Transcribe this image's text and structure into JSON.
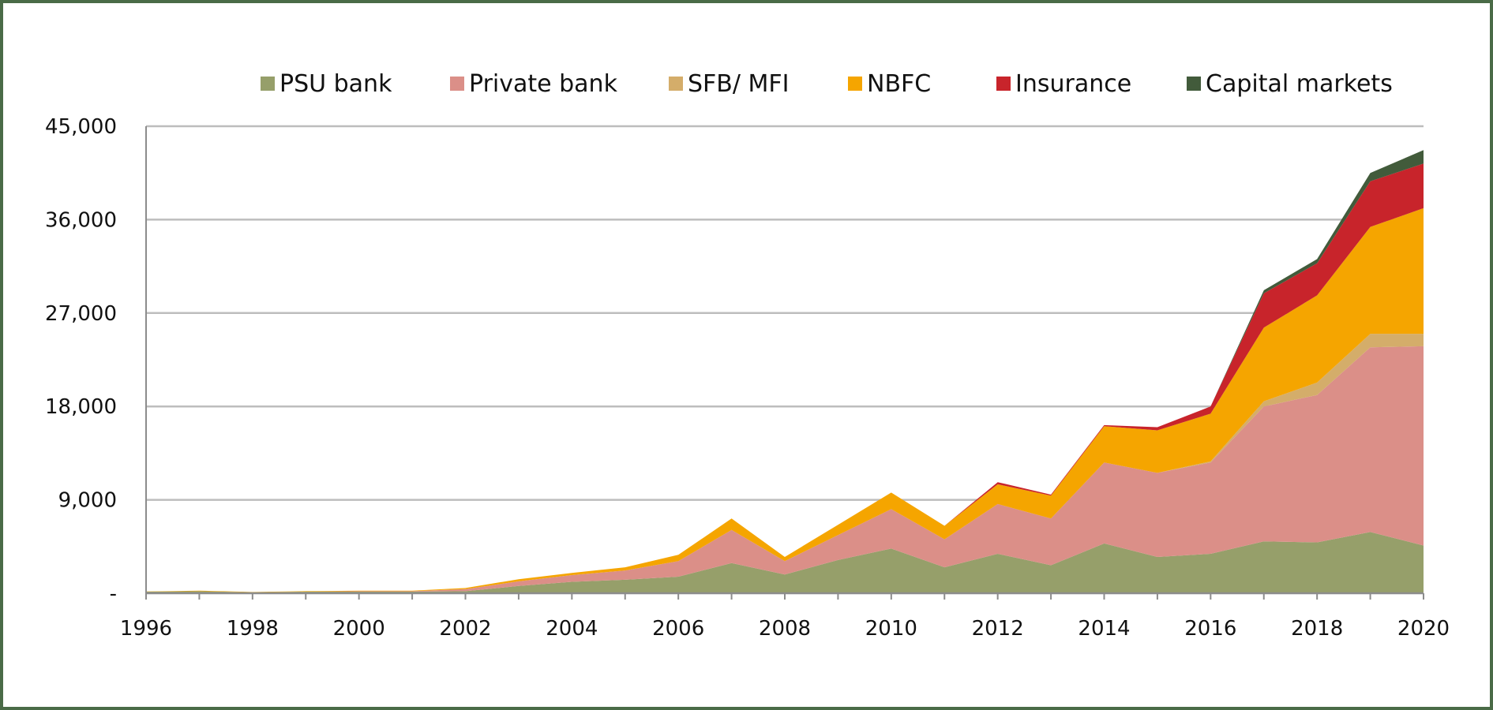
{
  "chart_data": {
    "type": "area",
    "stacked": true,
    "title": "",
    "xlabel": "",
    "ylabel": "",
    "x": [
      1996,
      1997,
      1998,
      1999,
      2000,
      2001,
      2002,
      2003,
      2004,
      2005,
      2006,
      2007,
      2008,
      2009,
      2010,
      2011,
      2012,
      2013,
      2014,
      2015,
      2016,
      2017,
      2018,
      2019,
      2020
    ],
    "xticks": [
      "1996",
      "1998",
      "2000",
      "2002",
      "2004",
      "2006",
      "2008",
      "2010",
      "2012",
      "2014",
      "2016",
      "2018",
      "2020"
    ],
    "xlim": [
      1996,
      2020
    ],
    "ylim": [
      0,
      45000
    ],
    "yticks": [
      0,
      9000,
      18000,
      27000,
      36000,
      45000
    ],
    "ytick_labels": [
      "-",
      "9,000",
      "18,000",
      "27,000",
      "36,000",
      "45,000"
    ],
    "grid": true,
    "legend_position": "top",
    "series": [
      {
        "name": "PSU bank",
        "color": "#969f6a",
        "values": [
          150,
          200,
          100,
          150,
          150,
          150,
          200,
          700,
          1100,
          1300,
          1600,
          2900,
          1800,
          3200,
          4300,
          2500,
          3800,
          2700,
          4800,
          3500,
          3800,
          5000,
          4900,
          5900,
          4600
        ]
      },
      {
        "name": "Private bank",
        "color": "#db8f88",
        "values": [
          0,
          0,
          0,
          0,
          50,
          50,
          200,
          450,
          650,
          900,
          1500,
          3200,
          1300,
          2400,
          3800,
          2700,
          4800,
          4500,
          7800,
          8100,
          8800,
          13000,
          14200,
          17800,
          19200
        ]
      },
      {
        "name": "SFB/ MFI",
        "color": "#d4ad6a",
        "values": [
          0,
          0,
          0,
          0,
          0,
          0,
          0,
          0,
          0,
          0,
          0,
          0,
          0,
          0,
          0,
          0,
          0,
          0,
          0,
          0,
          100,
          500,
          1200,
          1300,
          1200
        ]
      },
      {
        "name": "NBFC",
        "color": "#f5a500",
        "values": [
          20,
          50,
          20,
          50,
          50,
          50,
          100,
          200,
          200,
          300,
          600,
          1100,
          400,
          1000,
          1600,
          1300,
          1900,
          2200,
          3500,
          4100,
          4600,
          7100,
          8400,
          10300,
          12100
        ]
      },
      {
        "name": "Insurance",
        "color": "#c8242b",
        "values": [
          0,
          0,
          0,
          0,
          0,
          0,
          0,
          0,
          0,
          0,
          0,
          0,
          0,
          0,
          0,
          0,
          200,
          100,
          100,
          300,
          700,
          3300,
          3100,
          4400,
          4300
        ]
      },
      {
        "name": "Capital markets",
        "color": "#425b3b",
        "values": [
          0,
          0,
          0,
          0,
          0,
          0,
          0,
          0,
          0,
          0,
          0,
          0,
          0,
          0,
          0,
          0,
          0,
          0,
          0,
          0,
          0,
          300,
          400,
          800,
          1300
        ]
      }
    ]
  }
}
